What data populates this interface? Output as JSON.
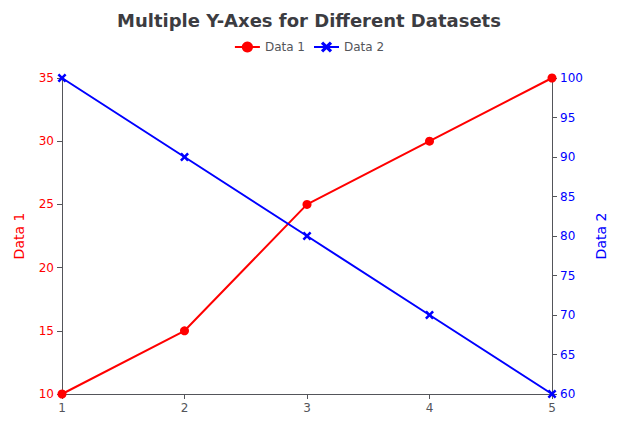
{
  "chart_data": {
    "type": "line",
    "title": "Multiple Y-Axes for Different Datasets",
    "x": [
      1,
      2,
      3,
      4,
      5
    ],
    "xlim": [
      1,
      5
    ],
    "xticks": [
      1,
      2,
      3,
      4,
      5
    ],
    "ylabel": "Data 1",
    "y2label": "Data 2",
    "ylim": [
      10,
      35
    ],
    "yticks": [
      10,
      15,
      20,
      25,
      30,
      35
    ],
    "y2lim": [
      60,
      100
    ],
    "y2ticks": [
      60,
      65,
      70,
      75,
      80,
      85,
      90,
      95,
      100
    ],
    "series": [
      {
        "name": "Data 1",
        "color": "red",
        "marker": "circle",
        "values": [
          10,
          15,
          25,
          30,
          35
        ]
      },
      {
        "name": "Data 2",
        "color": "blue",
        "marker": "x",
        "axis": "y2",
        "values": [
          100,
          90,
          80,
          70,
          60
        ]
      }
    ],
    "grid": false,
    "legend": "top"
  }
}
